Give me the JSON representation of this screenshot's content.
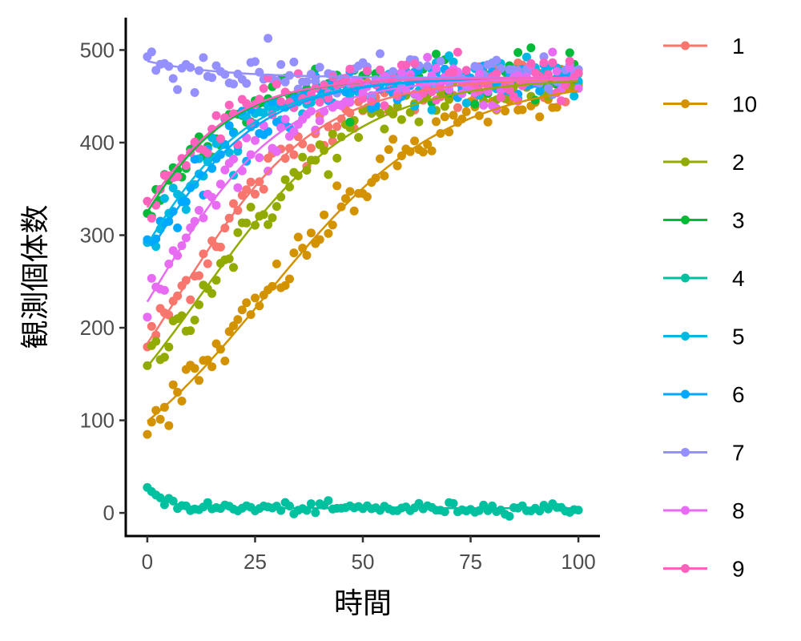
{
  "chart_data": {
    "type": "scatter",
    "title": "",
    "xlabel": "時間",
    "ylabel": "観測個体数",
    "xlim": [
      -5,
      105
    ],
    "ylim": [
      -25,
      535
    ],
    "xticks": [
      0,
      25,
      50,
      75,
      100
    ],
    "yticks": [
      0,
      100,
      200,
      300,
      400,
      500
    ],
    "xtick_labels": [
      "0",
      "25",
      "50",
      "75",
      "100"
    ],
    "ytick_labels": [
      "0",
      "100",
      "200",
      "300",
      "400",
      "500"
    ],
    "grid": false,
    "legend_position": "right",
    "x_range": [
      0,
      100
    ],
    "series": [
      {
        "name": "1",
        "color": "#F8766D",
        "model": "logistic",
        "K": 470,
        "r": 0.062,
        "y0": 183,
        "t_start": 0
      },
      {
        "name": "10",
        "color": "#D39200",
        "model": "logistic",
        "K": 470,
        "r": 0.048,
        "y0": 99,
        "t_start": 0
      },
      {
        "name": "2",
        "color": "#93AA00",
        "model": "logistic",
        "K": 470,
        "r": 0.055,
        "y0": 158,
        "t_start": 0
      },
      {
        "name": "3",
        "color": "#00BA38",
        "model": "logistic",
        "K": 470,
        "r": 0.075,
        "y0": 325,
        "t_start": 0
      },
      {
        "name": "4",
        "color": "#00C19F",
        "model": "exponential_decay",
        "K": 5,
        "r": 0.25,
        "y0": 30,
        "t_start": 0
      },
      {
        "name": "5",
        "color": "#00B9E3",
        "model": "logistic",
        "K": 470,
        "r": 0.068,
        "y0": 290,
        "t_start": 0
      },
      {
        "name": "6",
        "color": "#00A8FF",
        "model": "logistic",
        "K": 470,
        "r": 0.068,
        "y0": 293,
        "t_start": 2
      },
      {
        "name": "7",
        "color": "#9590FF",
        "model": "exponential_decay",
        "K": 470,
        "r": 0.06,
        "y0": 488,
        "t_start": 0
      },
      {
        "name": "8",
        "color": "#E76BF3",
        "model": "logistic",
        "K": 470,
        "r": 0.065,
        "y0": 228,
        "t_start": 0
      },
      {
        "name": "9",
        "color": "#FF62BC",
        "model": "logistic",
        "K": 470,
        "r": 0.075,
        "y0": 330,
        "t_start": 0
      }
    ]
  }
}
